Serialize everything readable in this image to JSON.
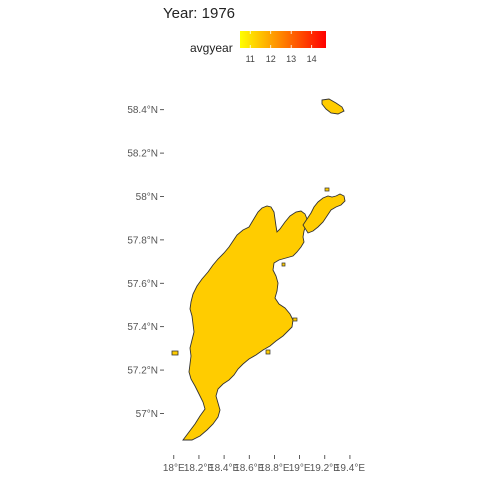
{
  "chart_data": {
    "type": "choropleth-map",
    "title": "Year: 1976",
    "legend": {
      "label": "avgyear",
      "placement": "top",
      "scale": "continuous",
      "min": 10.5,
      "max": 14.7,
      "ticks": [
        11,
        12,
        13,
        14
      ],
      "tick_labels": [
        "11",
        "12",
        "13",
        "14"
      ],
      "colors": [
        "#ffff00",
        "#ff0000"
      ]
    },
    "x_axis": {
      "range": [
        17.97,
        19.48
      ],
      "ticks": [
        18.0,
        18.2,
        18.4,
        18.6,
        18.8,
        19.0,
        19.2,
        19.4
      ],
      "tick_labels": [
        "18°E",
        "18.2°E",
        "18.4°E",
        "18.6°E",
        "18.8°E",
        "19°E",
        "19.2°E",
        "19.4°E"
      ]
    },
    "y_axis": {
      "range": [
        56.85,
        58.5
      ],
      "ticks": [
        57.0,
        57.2,
        57.4,
        57.6,
        57.8,
        58.0,
        58.2,
        58.4
      ],
      "tick_labels": [
        "57°N",
        "57.2°N",
        "57.4°N",
        "57.6°N",
        "57.8°N",
        "58°N",
        "58.2°N",
        "58.4°N"
      ]
    },
    "grid": false,
    "regions": [
      {
        "name": "",
        "avgyear": 11.6,
        "color": "#ffcc00"
      }
    ]
  }
}
